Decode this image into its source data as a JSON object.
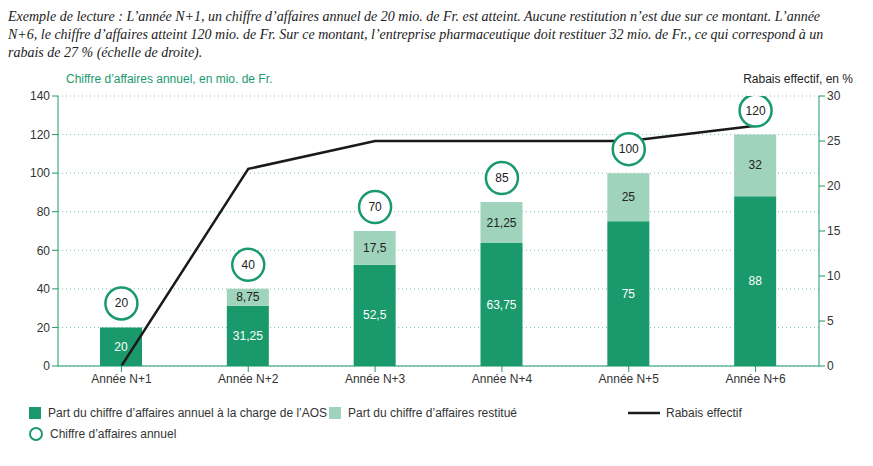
{
  "chart_data": {
    "type": "bar",
    "annotation": "Exemple de lecture : L’année N+1, un chiffre d’affaires annuel de 20 mio. de Fr. est atteint. Aucune restitution n’est due sur ce montant. L’année N+6, le chiffre d’affaires atteint 120 mio. de Fr. Sur ce montant, l’entreprise pharmaceutique doit restituer 32 mio. de Fr., ce qui correspond à un rabais de 27 % (échelle de droite).",
    "y_label": "Chiffre d’affaires annuel, en mio. de Fr.",
    "y2_label": "Rabais effectif, en %",
    "categories": [
      "Année N+1",
      "Année N+2",
      "Année N+3",
      "Année N+4",
      "Année N+5",
      "Année N+6"
    ],
    "series": [
      {
        "name": "Part du chiffre d’affaires annuel à la charge de l’AOS",
        "type": "bar",
        "color": "#1a9a6c",
        "values": [
          20,
          31.25,
          52.5,
          63.75,
          75,
          88
        ],
        "value_labels": [
          "20",
          "31,25",
          "52,5",
          "63,75",
          "75",
          "88"
        ]
      },
      {
        "name": "Part du chiffre d’affaires restitué",
        "type": "bar",
        "color": "#9fd3bb",
        "values": [
          null,
          8.75,
          17.5,
          21.25,
          25,
          32
        ],
        "value_labels": [
          null,
          "8,75",
          "17,5",
          "21,25",
          "25",
          "32"
        ]
      },
      {
        "name": "Rabais effectif",
        "type": "line",
        "axis": "y2",
        "color": "#1a1a1a",
        "values": [
          0,
          21.9,
          25,
          25,
          25,
          26.7
        ]
      },
      {
        "name": "Chiffre d’affaires annuel",
        "type": "scatter",
        "marker": "circle",
        "color": "#1a9a6c",
        "values": [
          20,
          40,
          70,
          85,
          100,
          120
        ]
      }
    ],
    "stacked": true,
    "data_labels": true,
    "ylim": [
      0,
      140
    ],
    "yticks": [
      0,
      20,
      40,
      60,
      80,
      100,
      120,
      140
    ],
    "y2lim": [
      0,
      30
    ],
    "y2ticks": [
      0,
      5,
      10,
      15,
      20,
      25,
      30
    ],
    "grid": true,
    "legend": "bottom"
  }
}
